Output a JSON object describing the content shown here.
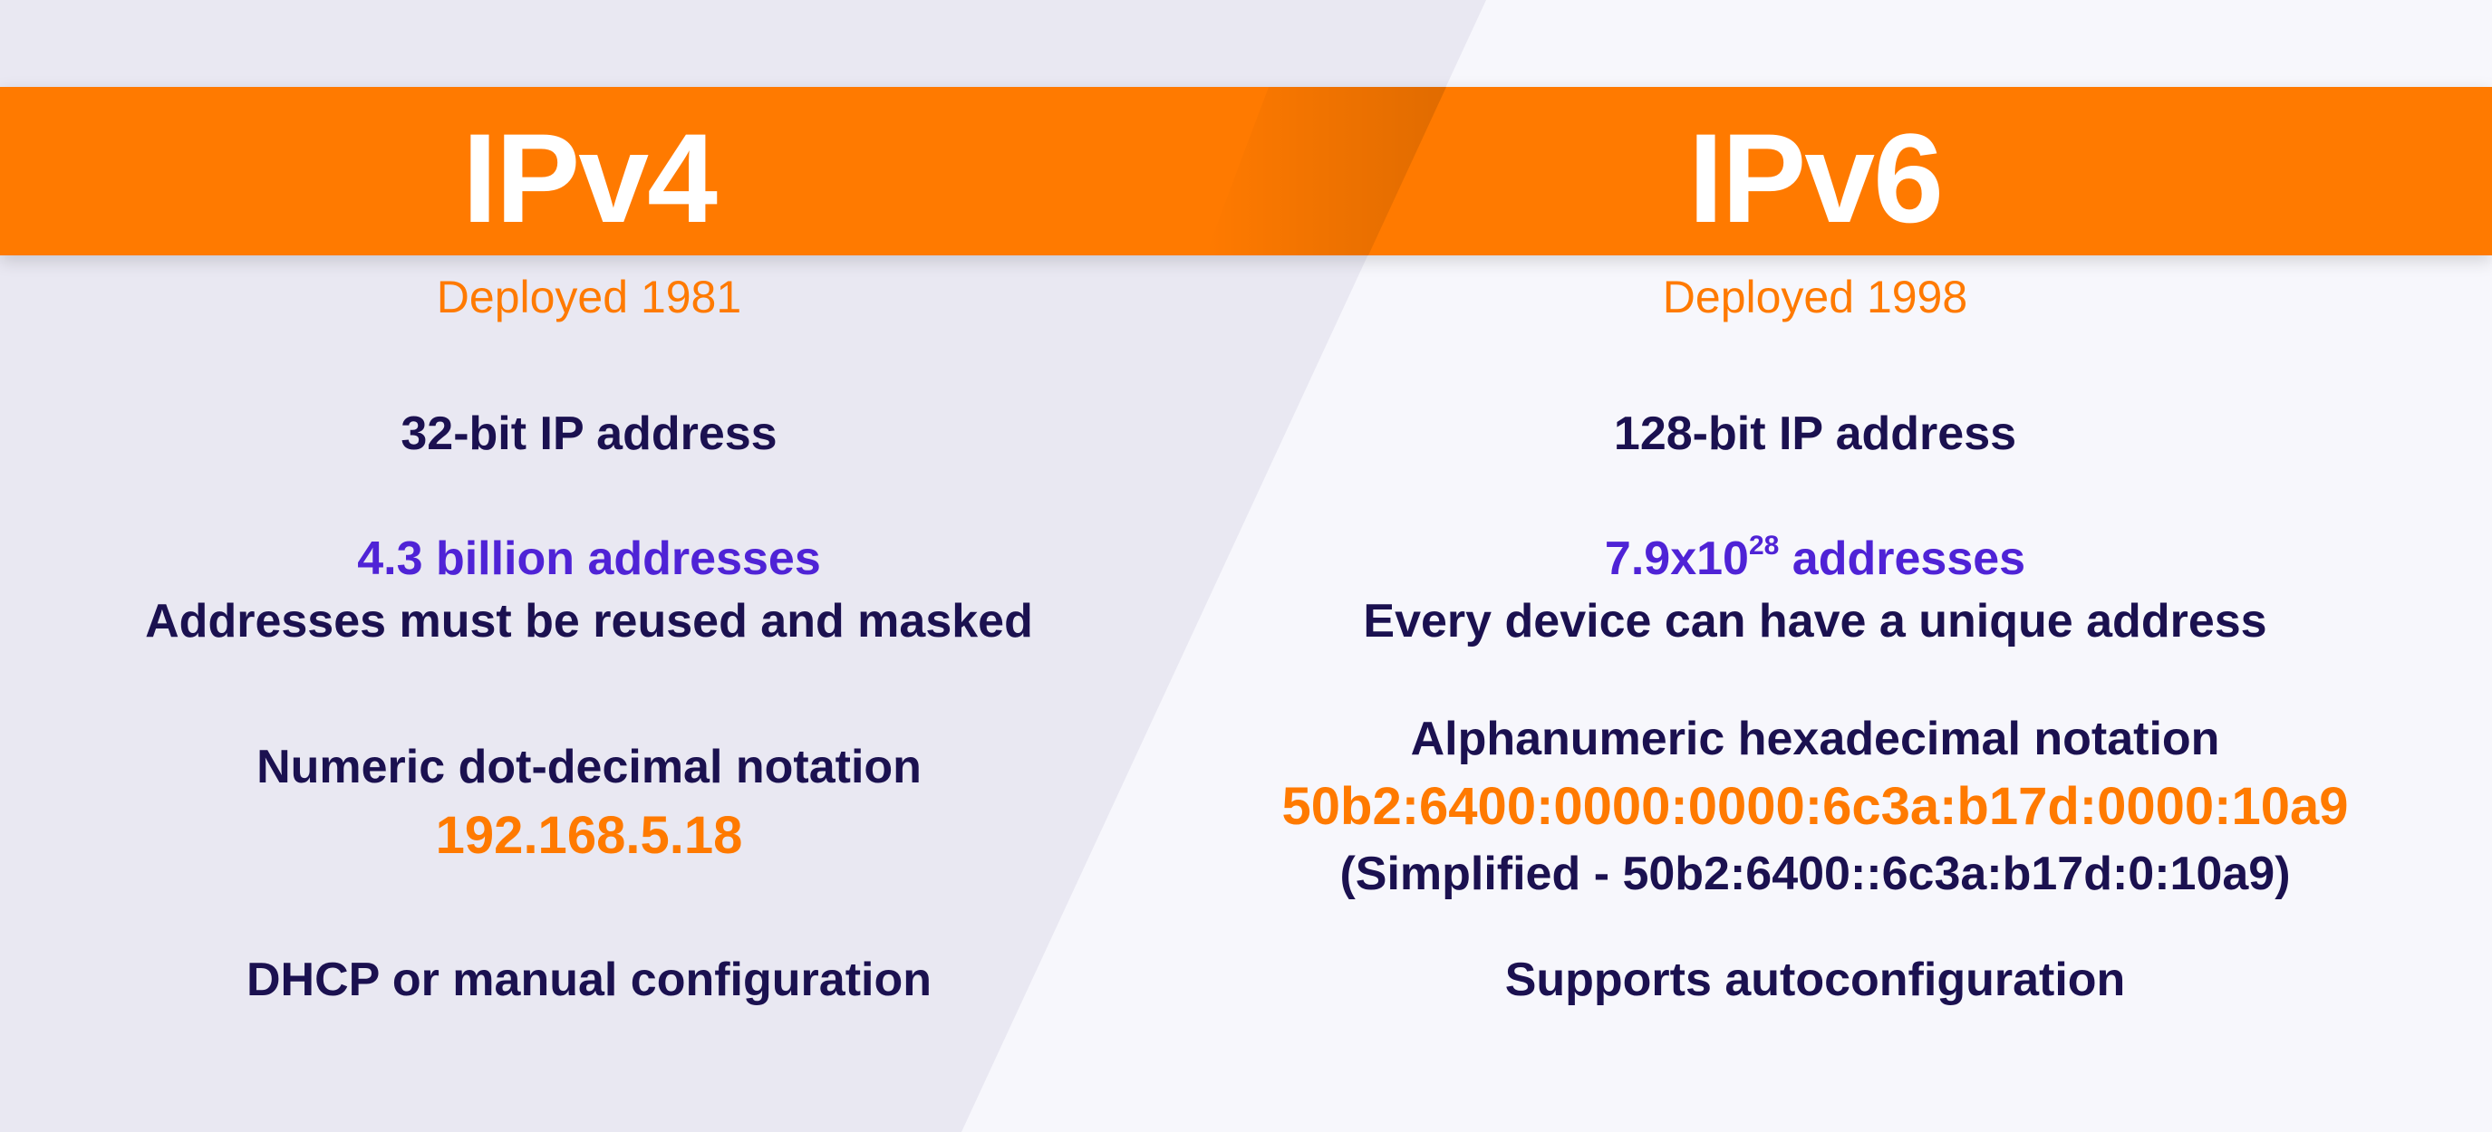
{
  "colors": {
    "accent": "#FF7A00",
    "text": "#1B1150",
    "highlight": "#4F23D6",
    "left_bg": "#E9E8F2",
    "right_bg": "#F7F7FC"
  },
  "ipv4": {
    "title": "IPv4",
    "deployed": "Deployed 1981",
    "bits": "32-bit IP address",
    "count": "4.3 billion addresses",
    "count_note": "Addresses must be reused and masked",
    "notation": "Numeric dot-decimal notation",
    "example": "192.168.5.18",
    "config": "DHCP or manual configuration"
  },
  "ipv6": {
    "title": "IPv6",
    "deployed": "Deployed 1998",
    "bits": "128-bit IP address",
    "count_base": "7.9x10",
    "count_exp": "28",
    "count_suffix": " addresses",
    "count_note": "Every device can have a unique address",
    "notation": "Alphanumeric hexadecimal notation",
    "example": "50b2:6400:0000:0000:6c3a:b17d:0000:10a9",
    "simplified": "(Simplified - 50b2:6400::6c3a:b17d:0:10a9)",
    "config": "Supports autoconfiguration"
  }
}
